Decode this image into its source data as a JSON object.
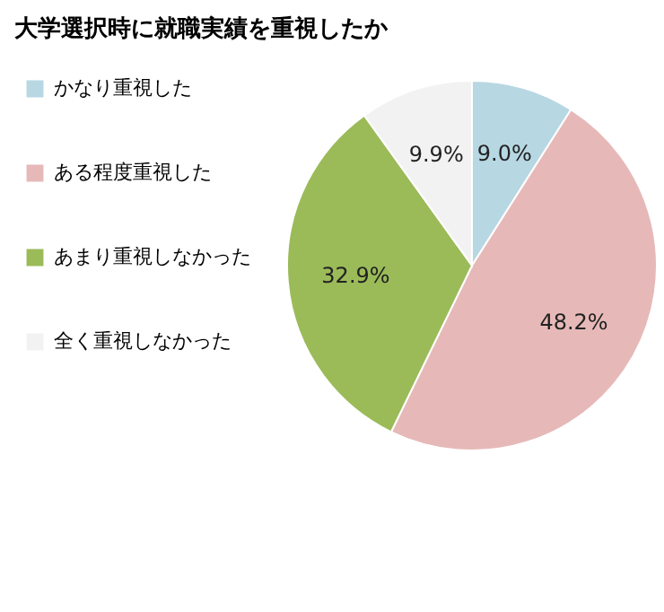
{
  "chart_data": {
    "type": "pie",
    "title": "大学選択時に就職実績を重視したか",
    "categories": [
      "かなり重視した",
      "ある程度重視した",
      "あまり重視しなかった",
      "全く重視しなかった"
    ],
    "values": [
      9.0,
      48.2,
      32.9,
      9.9
    ],
    "colors": [
      "#b7d7e3",
      "#e6b9b8",
      "#9bbb59",
      "#f2f2f2"
    ],
    "value_labels": [
      "9.0%",
      "48.2%",
      "32.9%",
      "9.9%"
    ],
    "legend": "left"
  }
}
